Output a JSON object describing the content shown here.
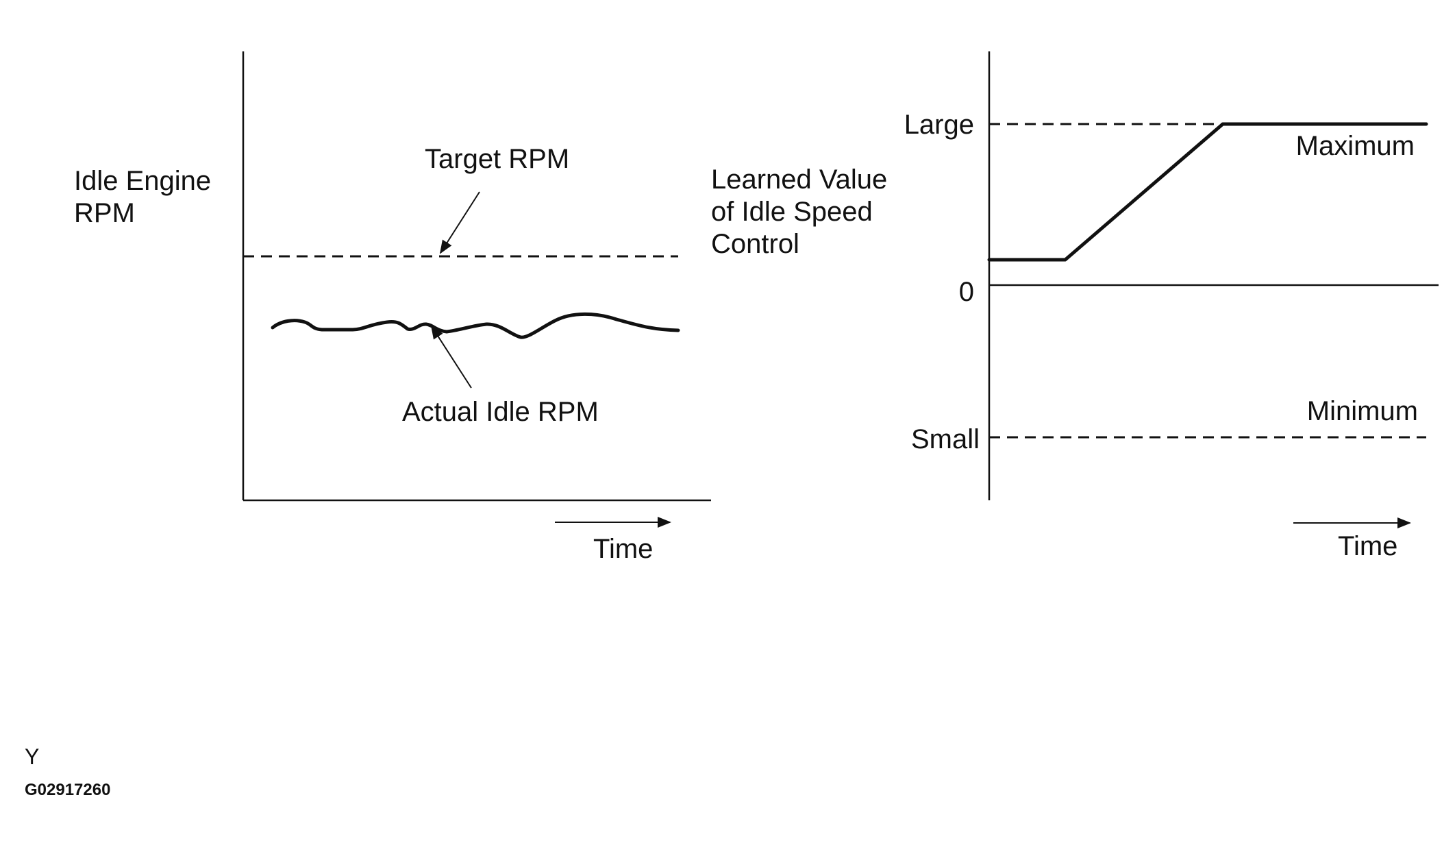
{
  "left_chart": {
    "y_title_line1": "Idle Engine",
    "y_title_line2": "RPM",
    "target_label": "Target RPM",
    "actual_label": "Actual Idle RPM",
    "time_label": "Time"
  },
  "right_chart": {
    "y_title_line1": "Learned Value",
    "y_title_line2": "of Idle Speed",
    "y_title_line3": "Control",
    "large_label": "Large",
    "zero_label": "0",
    "small_label": "Small",
    "maximum_label": "Maximum",
    "minimum_label": "Minimum",
    "time_label": "Time"
  },
  "footer": {
    "letter": "Y",
    "figure_id": "G02917260"
  }
}
